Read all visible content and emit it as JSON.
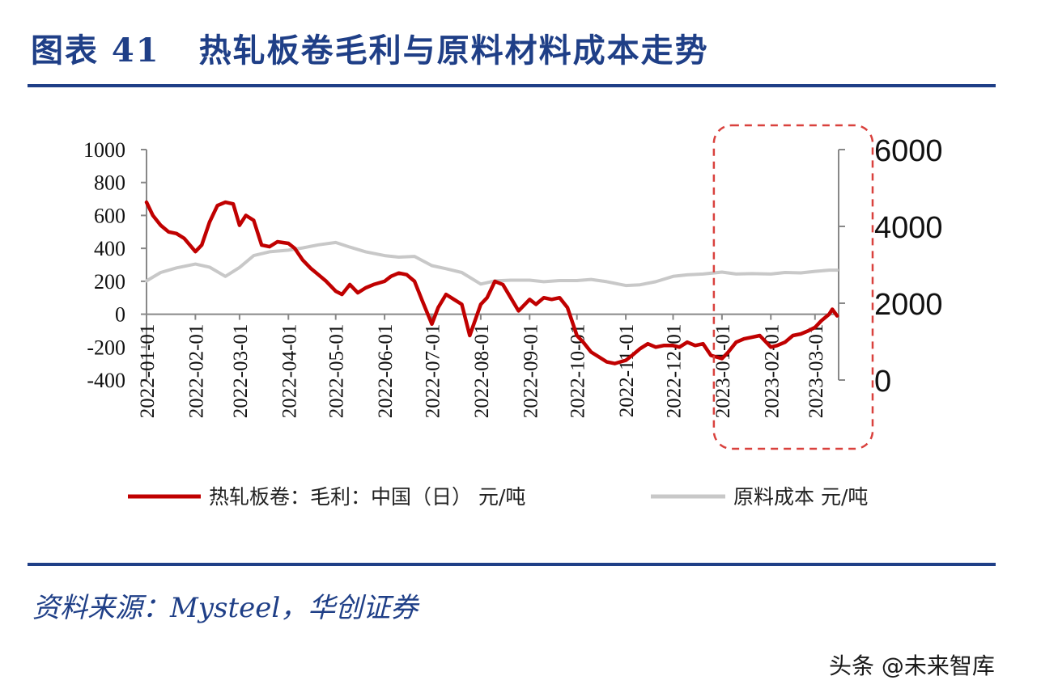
{
  "header": {
    "figure_label": "图表 41",
    "title": "热轧板卷毛利与原料材料成本走势"
  },
  "footer": {
    "source": "资料来源：Mysteel，华创证券",
    "watermark": "头条 @未来智库"
  },
  "chart_data": {
    "type": "line",
    "x_ticks": [
      "2022-01-01",
      "2022-02-01",
      "2022-03-01",
      "2022-04-01",
      "2022-05-01",
      "2022-06-01",
      "2022-07-01",
      "2022-08-01",
      "2022-09-01",
      "2022-10-01",
      "2022-11-01",
      "2022-12-01",
      "2023-01-01",
      "2023-02-01",
      "2023-03-01"
    ],
    "y_left": {
      "lim": [
        -400,
        1000
      ],
      "ticks": [
        "1000",
        "800",
        "600",
        "400",
        "200",
        "0",
        "-200",
        "-400"
      ]
    },
    "y_right": {
      "lim": [
        0,
        6000
      ],
      "ticks": [
        "6000",
        "4000",
        "2000",
        "0"
      ]
    },
    "series": [
      {
        "name": "热轧板卷：毛利：中国（日） 元/吨",
        "axis": "left",
        "color": "#c00000",
        "points": [
          [
            "2022-01-01",
            680
          ],
          [
            "2022-01-05",
            600
          ],
          [
            "2022-01-10",
            540
          ],
          [
            "2022-01-15",
            500
          ],
          [
            "2022-01-20",
            490
          ],
          [
            "2022-01-25",
            460
          ],
          [
            "2022-02-01",
            380
          ],
          [
            "2022-02-05",
            420
          ],
          [
            "2022-02-10",
            560
          ],
          [
            "2022-02-15",
            660
          ],
          [
            "2022-02-20",
            680
          ],
          [
            "2022-02-25",
            670
          ],
          [
            "2022-03-01",
            540
          ],
          [
            "2022-03-05",
            600
          ],
          [
            "2022-03-10",
            570
          ],
          [
            "2022-03-15",
            420
          ],
          [
            "2022-03-20",
            410
          ],
          [
            "2022-03-25",
            440
          ],
          [
            "2022-04-01",
            430
          ],
          [
            "2022-04-05",
            400
          ],
          [
            "2022-04-10",
            330
          ],
          [
            "2022-04-15",
            280
          ],
          [
            "2022-04-20",
            240
          ],
          [
            "2022-04-25",
            200
          ],
          [
            "2022-05-01",
            140
          ],
          [
            "2022-05-05",
            120
          ],
          [
            "2022-05-10",
            180
          ],
          [
            "2022-05-15",
            130
          ],
          [
            "2022-05-20",
            160
          ],
          [
            "2022-05-25",
            180
          ],
          [
            "2022-06-01",
            200
          ],
          [
            "2022-06-05",
            230
          ],
          [
            "2022-06-10",
            250
          ],
          [
            "2022-06-15",
            240
          ],
          [
            "2022-06-20",
            200
          ],
          [
            "2022-06-25",
            80
          ],
          [
            "2022-07-01",
            -60
          ],
          [
            "2022-07-05",
            40
          ],
          [
            "2022-07-10",
            120
          ],
          [
            "2022-07-15",
            90
          ],
          [
            "2022-07-20",
            60
          ],
          [
            "2022-07-25",
            -130
          ],
          [
            "2022-08-01",
            60
          ],
          [
            "2022-08-05",
            100
          ],
          [
            "2022-08-10",
            200
          ],
          [
            "2022-08-15",
            180
          ],
          [
            "2022-08-20",
            100
          ],
          [
            "2022-08-25",
            20
          ],
          [
            "2022-09-01",
            90
          ],
          [
            "2022-09-05",
            60
          ],
          [
            "2022-09-10",
            100
          ],
          [
            "2022-09-15",
            90
          ],
          [
            "2022-09-20",
            100
          ],
          [
            "2022-09-25",
            40
          ],
          [
            "2022-10-01",
            -130
          ],
          [
            "2022-10-05",
            -170
          ],
          [
            "2022-10-10",
            -230
          ],
          [
            "2022-10-15",
            -260
          ],
          [
            "2022-10-20",
            -290
          ],
          [
            "2022-10-25",
            -300
          ],
          [
            "2022-11-01",
            -280
          ],
          [
            "2022-11-05",
            -250
          ],
          [
            "2022-11-10",
            -210
          ],
          [
            "2022-11-15",
            -180
          ],
          [
            "2022-11-20",
            -200
          ],
          [
            "2022-11-25",
            -190
          ],
          [
            "2022-12-01",
            -190
          ],
          [
            "2022-12-05",
            -200
          ],
          [
            "2022-12-10",
            -170
          ],
          [
            "2022-12-15",
            -190
          ],
          [
            "2022-12-20",
            -180
          ],
          [
            "2022-12-25",
            -250
          ],
          [
            "2023-01-01",
            -270
          ],
          [
            "2023-01-05",
            -230
          ],
          [
            "2023-01-10",
            -170
          ],
          [
            "2023-01-15",
            -150
          ],
          [
            "2023-01-20",
            -140
          ],
          [
            "2023-01-25",
            -130
          ],
          [
            "2023-02-01",
            -200
          ],
          [
            "2023-02-05",
            -190
          ],
          [
            "2023-02-10",
            -170
          ],
          [
            "2023-02-15",
            -130
          ],
          [
            "2023-02-20",
            -120
          ],
          [
            "2023-02-25",
            -100
          ],
          [
            "2023-03-01",
            -80
          ],
          [
            "2023-03-05",
            -40
          ],
          [
            "2023-03-10",
            0
          ],
          [
            "2023-03-12",
            30
          ],
          [
            "2023-03-15",
            -10
          ]
        ]
      },
      {
        "name": "原料成本 元/吨",
        "axis": "right",
        "color": "#c8c8c8",
        "points": [
          [
            "2022-01-01",
            2580
          ],
          [
            "2022-01-10",
            2800
          ],
          [
            "2022-01-20",
            2920
          ],
          [
            "2022-02-01",
            3020
          ],
          [
            "2022-02-10",
            2940
          ],
          [
            "2022-02-20",
            2700
          ],
          [
            "2022-03-01",
            2930
          ],
          [
            "2022-03-10",
            3240
          ],
          [
            "2022-03-20",
            3340
          ],
          [
            "2022-04-01",
            3380
          ],
          [
            "2022-04-10",
            3440
          ],
          [
            "2022-04-20",
            3520
          ],
          [
            "2022-05-01",
            3580
          ],
          [
            "2022-05-10",
            3460
          ],
          [
            "2022-05-20",
            3340
          ],
          [
            "2022-06-01",
            3240
          ],
          [
            "2022-06-10",
            3200
          ],
          [
            "2022-06-20",
            3220
          ],
          [
            "2022-07-01",
            2980
          ],
          [
            "2022-07-10",
            2900
          ],
          [
            "2022-07-20",
            2800
          ],
          [
            "2022-08-01",
            2500
          ],
          [
            "2022-08-10",
            2580
          ],
          [
            "2022-08-20",
            2600
          ],
          [
            "2022-09-01",
            2600
          ],
          [
            "2022-09-10",
            2560
          ],
          [
            "2022-09-20",
            2590
          ],
          [
            "2022-10-01",
            2590
          ],
          [
            "2022-10-10",
            2620
          ],
          [
            "2022-10-20",
            2560
          ],
          [
            "2022-11-01",
            2460
          ],
          [
            "2022-11-10",
            2480
          ],
          [
            "2022-11-20",
            2560
          ],
          [
            "2022-12-01",
            2700
          ],
          [
            "2022-12-10",
            2740
          ],
          [
            "2022-12-20",
            2760
          ],
          [
            "2023-01-01",
            2810
          ],
          [
            "2023-01-10",
            2760
          ],
          [
            "2023-01-20",
            2770
          ],
          [
            "2023-02-01",
            2760
          ],
          [
            "2023-02-10",
            2800
          ],
          [
            "2023-02-20",
            2790
          ],
          [
            "2023-03-01",
            2830
          ],
          [
            "2023-03-10",
            2860
          ],
          [
            "2023-03-15",
            2860
          ]
        ]
      }
    ],
    "highlight": {
      "from": "2023-01-01",
      "to": "2023-03-15",
      "style": "dashed-box",
      "color": "#d9413d"
    },
    "legend": {
      "position": "bottom"
    }
  }
}
